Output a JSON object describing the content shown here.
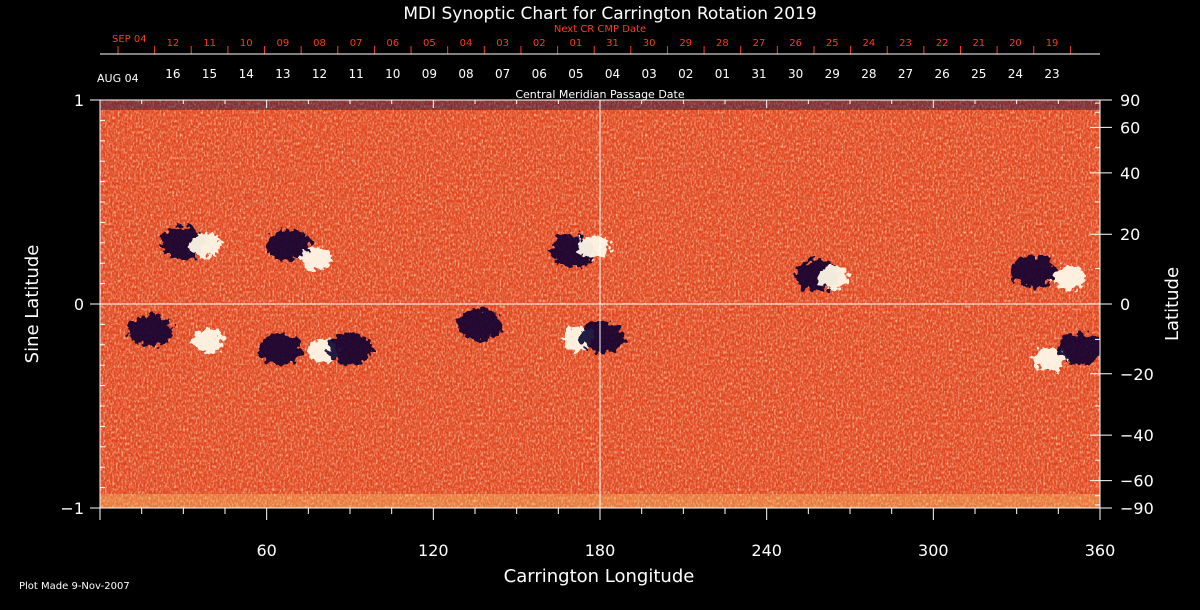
{
  "chart_data": {
    "type": "heatmap",
    "title": "MDI Synoptic Chart for Carrington Rotation 2019",
    "xlabel": "Carrington Longitude",
    "ylabel_left": "Sine Latitude",
    "ylabel_right": "Latitude",
    "xlim": [
      0,
      360
    ],
    "ylim": [
      -1,
      1
    ],
    "x_ticks": [
      "60",
      "120",
      "180",
      "240",
      "300",
      "360"
    ],
    "y_ticks_left": [
      "1",
      "0",
      "−1"
    ],
    "y_ticks_right": [
      "90",
      "60",
      "40",
      "20",
      "0",
      "−20",
      "−40",
      "−60",
      "−90"
    ],
    "top_axis_label": "Central Meridian Passage Date",
    "next_cr_label": "Next CR CMP Date",
    "next_cr_month": "SEP 04",
    "next_cr_days": [
      "12",
      "11",
      "10",
      "09",
      "08",
      "07",
      "06",
      "05",
      "04",
      "03",
      "02",
      "01",
      "31",
      "30",
      "29",
      "28",
      "27",
      "26",
      "25",
      "24",
      "23",
      "22",
      "21",
      "20",
      "19"
    ],
    "cmp_month": "AUG 04",
    "cmp_days": [
      "16",
      "15",
      "14",
      "13",
      "12",
      "11",
      "10",
      "09",
      "08",
      "07",
      "06",
      "05",
      "04",
      "03",
      "02",
      "01",
      "31",
      "30",
      "29",
      "28",
      "27",
      "26",
      "25",
      "24",
      "23"
    ],
    "colors": {
      "background_field": "#e8481a",
      "positive_polarity": "#ffffff",
      "negative_polarity": "#0a0630",
      "next_cr_text": "#ff3a1a"
    },
    "active_regions": [
      {
        "polarity": "negative",
        "lon": 30,
        "sinlat": 0.3
      },
      {
        "polarity": "positive",
        "lon": 38,
        "sinlat": 0.29
      },
      {
        "polarity": "negative",
        "lon": 68,
        "sinlat": 0.29
      },
      {
        "polarity": "positive",
        "lon": 78,
        "sinlat": 0.22
      },
      {
        "polarity": "negative",
        "lon": 170,
        "sinlat": 0.26
      },
      {
        "polarity": "positive",
        "lon": 178,
        "sinlat": 0.28
      },
      {
        "polarity": "negative",
        "lon": 258,
        "sinlat": 0.14
      },
      {
        "polarity": "positive",
        "lon": 264,
        "sinlat": 0.13
      },
      {
        "polarity": "negative",
        "lon": 336,
        "sinlat": 0.16
      },
      {
        "polarity": "positive",
        "lon": 349,
        "sinlat": 0.13
      },
      {
        "polarity": "negative",
        "lon": 18,
        "sinlat": -0.13
      },
      {
        "polarity": "positive",
        "lon": 39,
        "sinlat": -0.18
      },
      {
        "polarity": "negative",
        "lon": 65,
        "sinlat": -0.22
      },
      {
        "polarity": "positive",
        "lon": 80,
        "sinlat": -0.23
      },
      {
        "polarity": "negative",
        "lon": 90,
        "sinlat": -0.22
      },
      {
        "polarity": "negative",
        "lon": 137,
        "sinlat": -0.1
      },
      {
        "polarity": "positive",
        "lon": 172,
        "sinlat": -0.17
      },
      {
        "polarity": "negative",
        "lon": 181,
        "sinlat": -0.16
      },
      {
        "polarity": "positive",
        "lon": 342,
        "sinlat": -0.27
      },
      {
        "polarity": "negative",
        "lon": 353,
        "sinlat": -0.22
      }
    ]
  },
  "footer": {
    "plot_made": "Plot Made  9-Nov-2007"
  }
}
